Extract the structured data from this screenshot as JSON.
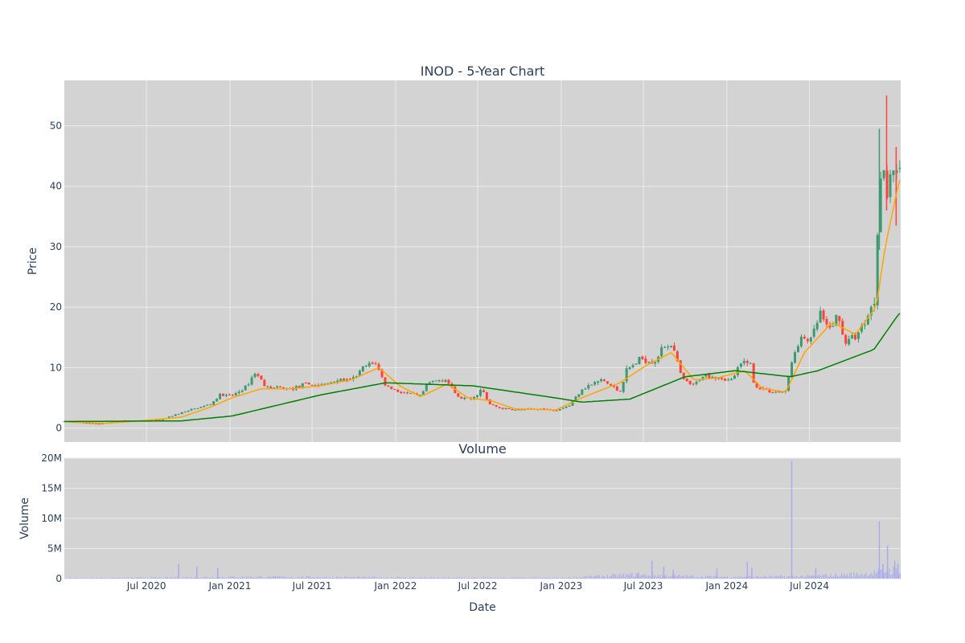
{
  "chart_data": [
    {
      "type": "candlestick",
      "title": "INOD - 5-Year Chart",
      "ylabel": "Price",
      "ylim": [
        -2.3,
        57.5
      ],
      "y_ticks": [
        0,
        10,
        20,
        30,
        40,
        50
      ],
      "y_tick_labels": [
        "0",
        "10",
        "20",
        "30",
        "40",
        "50"
      ],
      "grid": true,
      "legend": "none",
      "colors": {
        "up": "#3d9970",
        "down": "#ff4136",
        "ma_short": "#ffa500",
        "ma_long": "#008000",
        "plot_bg": "#d3d3d3",
        "grid": "#ebebeb"
      },
      "ohlc_keypoints": [
        {
          "x": "2020-01-02",
          "close": 1.1
        },
        {
          "x": "2020-03-20",
          "close": 0.7
        },
        {
          "x": "2020-05-01",
          "close": 1.2
        },
        {
          "x": "2020-08-01",
          "close": 1.3
        },
        {
          "x": "2020-09-01",
          "close": 2.2
        },
        {
          "x": "2020-10-15",
          "close": 3.2
        },
        {
          "x": "2020-11-20",
          "close": 4.0
        },
        {
          "x": "2020-12-10",
          "close": 5.5
        },
        {
          "x": "2021-01-05",
          "close": 5.3
        },
        {
          "x": "2021-02-05",
          "close": 6.8
        },
        {
          "x": "2021-02-25",
          "close": 9.2
        },
        {
          "x": "2021-03-25",
          "close": 6.7
        },
        {
          "x": "2021-05-15",
          "close": 6.5
        },
        {
          "x": "2021-06-20",
          "close": 7.3
        },
        {
          "x": "2021-07-20",
          "close": 7.0
        },
        {
          "x": "2021-08-25",
          "close": 8.0
        },
        {
          "x": "2021-09-25",
          "close": 7.8
        },
        {
          "x": "2021-10-25",
          "close": 10.2
        },
        {
          "x": "2021-11-18",
          "close": 10.8
        },
        {
          "x": "2021-12-10",
          "close": 7.0
        },
        {
          "x": "2022-01-10",
          "close": 6.0
        },
        {
          "x": "2022-02-25",
          "close": 5.3
        },
        {
          "x": "2022-03-15",
          "close": 7.5
        },
        {
          "x": "2022-04-20",
          "close": 8.2
        },
        {
          "x": "2022-05-20",
          "close": 5.0
        },
        {
          "x": "2022-06-20",
          "close": 4.8
        },
        {
          "x": "2022-07-10",
          "close": 6.5
        },
        {
          "x": "2022-07-25",
          "close": 4.0
        },
        {
          "x": "2022-08-20",
          "close": 3.3
        },
        {
          "x": "2022-09-20",
          "close": 3.0
        },
        {
          "x": "2022-11-20",
          "close": 3.2
        },
        {
          "x": "2022-12-20",
          "close": 3.0
        },
        {
          "x": "2023-01-20",
          "close": 3.8
        },
        {
          "x": "2023-02-15",
          "close": 6.5
        },
        {
          "x": "2023-04-01",
          "close": 8.0
        },
        {
          "x": "2023-05-10",
          "close": 6.0
        },
        {
          "x": "2023-05-25",
          "close": 9.5
        },
        {
          "x": "2023-06-25",
          "close": 11.5
        },
        {
          "x": "2023-07-25",
          "close": 11.0
        },
        {
          "x": "2023-08-15",
          "close": 13.5
        },
        {
          "x": "2023-09-01",
          "close": 14.0
        },
        {
          "x": "2023-09-25",
          "close": 8.0
        },
        {
          "x": "2023-10-20",
          "close": 7.0
        },
        {
          "x": "2023-11-10",
          "close": 8.8
        },
        {
          "x": "2023-12-10",
          "close": 8.5
        },
        {
          "x": "2024-01-10",
          "close": 7.8
        },
        {
          "x": "2024-02-01",
          "close": 10.5
        },
        {
          "x": "2024-02-20",
          "close": 11.5
        },
        {
          "x": "2024-03-01",
          "close": 7.0
        },
        {
          "x": "2024-04-10",
          "close": 6.0
        },
        {
          "x": "2024-05-10",
          "close": 6.0
        },
        {
          "x": "2024-05-22",
          "close": 11.0
        },
        {
          "x": "2024-06-15",
          "close": 15.0
        },
        {
          "x": "2024-07-05",
          "close": 14.5
        },
        {
          "x": "2024-07-25",
          "close": 19.0
        },
        {
          "x": "2024-08-10",
          "close": 16.0
        },
        {
          "x": "2024-09-01",
          "close": 18.5
        },
        {
          "x": "2024-09-20",
          "close": 14.0
        },
        {
          "x": "2024-10-20",
          "close": 16.0
        },
        {
          "x": "2024-11-15",
          "close": 20.0
        },
        {
          "x": "2024-11-25",
          "close": 22.0
        },
        {
          "x": "2024-12-01",
          "close": 43.0
        },
        {
          "x": "2024-12-10",
          "close": 44.0
        },
        {
          "x": "2024-12-20",
          "close": 38.0
        },
        {
          "x": "2025-01-01",
          "close": 44.0
        },
        {
          "x": "2025-01-10",
          "close": 40.0
        },
        {
          "x": "2025-01-15",
          "close": 44.0
        }
      ],
      "ma_short_keypoints": [
        {
          "x": "2020-01-02",
          "y": 1.1
        },
        {
          "x": "2020-04-01",
          "y": 0.8
        },
        {
          "x": "2020-06-15",
          "y": 1.2
        },
        {
          "x": "2020-09-15",
          "y": 1.8
        },
        {
          "x": "2020-11-20",
          "y": 3.5
        },
        {
          "x": "2021-01-05",
          "y": 5.0
        },
        {
          "x": "2021-03-10",
          "y": 6.5
        },
        {
          "x": "2021-05-15",
          "y": 6.5
        },
        {
          "x": "2021-07-20",
          "y": 7.0
        },
        {
          "x": "2021-09-25",
          "y": 8.0
        },
        {
          "x": "2021-11-25",
          "y": 10.0
        },
        {
          "x": "2022-01-10",
          "y": 7.0
        },
        {
          "x": "2022-02-25",
          "y": 5.2
        },
        {
          "x": "2022-04-25",
          "y": 7.3
        },
        {
          "x": "2022-06-10",
          "y": 5.0
        },
        {
          "x": "2022-08-01",
          "y": 4.5
        },
        {
          "x": "2022-09-20",
          "y": 3.2
        },
        {
          "x": "2022-12-20",
          "y": 3.0
        },
        {
          "x": "2023-02-15",
          "y": 5.0
        },
        {
          "x": "2023-05-10",
          "y": 7.5
        },
        {
          "x": "2023-07-10",
          "y": 10.5
        },
        {
          "x": "2023-09-01",
          "y": 12.5
        },
        {
          "x": "2023-10-20",
          "y": 8.0
        },
        {
          "x": "2023-12-10",
          "y": 8.3
        },
        {
          "x": "2024-02-10",
          "y": 9.5
        },
        {
          "x": "2024-03-20",
          "y": 6.5
        },
        {
          "x": "2024-05-10",
          "y": 6.0
        },
        {
          "x": "2024-06-20",
          "y": 12.5
        },
        {
          "x": "2024-08-20",
          "y": 17.5
        },
        {
          "x": "2024-10-10",
          "y": 15.5
        },
        {
          "x": "2024-11-25",
          "y": 20.0
        },
        {
          "x": "2024-12-15",
          "y": 30.0
        },
        {
          "x": "2025-01-15",
          "y": 41.0
        }
      ],
      "ma_long_keypoints": [
        {
          "x": "2020-01-02",
          "y": 1.1
        },
        {
          "x": "2020-09-15",
          "y": 1.2
        },
        {
          "x": "2021-01-05",
          "y": 2.0
        },
        {
          "x": "2021-07-20",
          "y": 5.5
        },
        {
          "x": "2021-12-10",
          "y": 7.5
        },
        {
          "x": "2022-06-20",
          "y": 7.0
        },
        {
          "x": "2022-12-20",
          "y": 5.0
        },
        {
          "x": "2023-02-15",
          "y": 4.3
        },
        {
          "x": "2023-06-01",
          "y": 4.8
        },
        {
          "x": "2023-10-01",
          "y": 8.5
        },
        {
          "x": "2024-01-20",
          "y": 9.5
        },
        {
          "x": "2024-05-20",
          "y": 8.5
        },
        {
          "x": "2024-07-20",
          "y": 9.5
        },
        {
          "x": "2024-11-20",
          "y": 13.0
        },
        {
          "x": "2025-01-15",
          "y": 19.0
        }
      ]
    },
    {
      "type": "bar",
      "title": "Volume",
      "xlabel": "Date",
      "ylabel": "Volume",
      "ylim": [
        0,
        20000000
      ],
      "y_ticks": [
        0,
        5000000,
        10000000,
        15000000,
        20000000
      ],
      "y_tick_labels": [
        "0",
        "5M",
        "10M",
        "15M",
        "20M"
      ],
      "x_range": [
        "2020-01-02",
        "2025-01-18"
      ],
      "x_ticks": [
        "2020-07-01",
        "2021-01-01",
        "2021-07-01",
        "2022-01-01",
        "2022-07-01",
        "2023-01-01",
        "2023-07-01",
        "2024-01-01",
        "2024-07-01"
      ],
      "x_tick_labels": [
        "Jul 2020",
        "Jan 2021",
        "Jul 2021",
        "Jan 2022",
        "Jul 2022",
        "Jan 2023",
        "Jul 2023",
        "Jan 2024",
        "Jul 2024"
      ],
      "bar_color": "#aaaaee",
      "volume_keypoints": [
        {
          "x": "2020-01-02",
          "v": 100000
        },
        {
          "x": "2020-09-15",
          "v": 200000
        },
        {
          "x": "2021-03-01",
          "v": 300000
        },
        {
          "x": "2022-01-01",
          "v": 200000
        },
        {
          "x": "2022-07-01",
          "v": 150000
        },
        {
          "x": "2023-01-01",
          "v": 150000
        },
        {
          "x": "2023-06-01",
          "v": 600000
        },
        {
          "x": "2024-01-01",
          "v": 300000
        },
        {
          "x": "2024-07-01",
          "v": 400000
        },
        {
          "x": "2024-11-01",
          "v": 800000
        },
        {
          "x": "2025-01-15",
          "v": 1500000
        }
      ],
      "volume_spikes": [
        {
          "x": "2020-09-10",
          "v": 2500000
        },
        {
          "x": "2020-10-20",
          "v": 2000000
        },
        {
          "x": "2020-12-05",
          "v": 1800000
        },
        {
          "x": "2023-06-20",
          "v": 1000000
        },
        {
          "x": "2023-07-20",
          "v": 3000000
        },
        {
          "x": "2023-08-15",
          "v": 2000000
        },
        {
          "x": "2023-09-05",
          "v": 1500000
        },
        {
          "x": "2023-12-10",
          "v": 1700000
        },
        {
          "x": "2024-02-15",
          "v": 2800000
        },
        {
          "x": "2024-02-25",
          "v": 1800000
        },
        {
          "x": "2024-05-23",
          "v": 19500000
        },
        {
          "x": "2024-07-15",
          "v": 1800000
        },
        {
          "x": "2024-12-02",
          "v": 9500000
        },
        {
          "x": "2024-12-10",
          "v": 2500000
        },
        {
          "x": "2024-12-20",
          "v": 5500000
        },
        {
          "x": "2025-01-05",
          "v": 3000000
        },
        {
          "x": "2025-01-12",
          "v": 2500000
        }
      ]
    }
  ]
}
